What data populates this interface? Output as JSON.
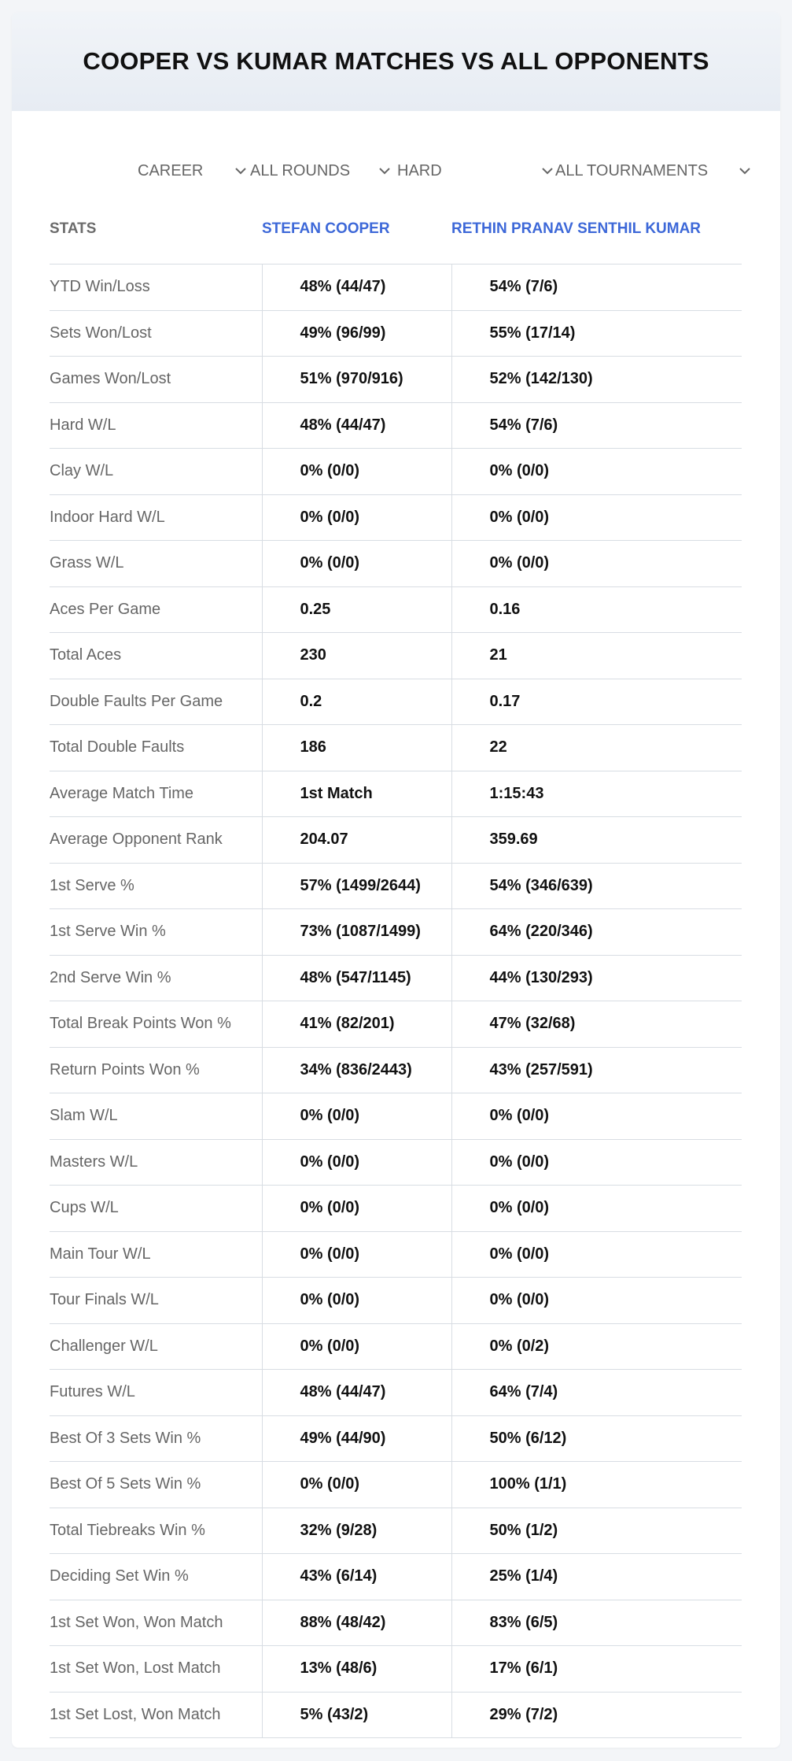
{
  "title": "COOPER VS KUMAR MATCHES VS ALL OPPONENTS",
  "filters": {
    "period": "CAREER",
    "rounds": "ALL ROUNDS",
    "surface": "HARD",
    "tournaments": "ALL TOURNAMENTS"
  },
  "table": {
    "headers": [
      "STATS",
      "STEFAN COOPER",
      "RETHIN PRANAV SENTHIL KUMAR"
    ],
    "rows": [
      [
        "YTD Win/Loss",
        "48% (44/47)",
        "54% (7/6)"
      ],
      [
        "Sets Won/Lost",
        "49% (96/99)",
        "55% (17/14)"
      ],
      [
        "Games Won/Lost",
        "51% (970/916)",
        "52% (142/130)"
      ],
      [
        "Hard W/L",
        "48% (44/47)",
        "54% (7/6)"
      ],
      [
        "Clay W/L",
        "0% (0/0)",
        "0% (0/0)"
      ],
      [
        "Indoor Hard W/L",
        "0% (0/0)",
        "0% (0/0)"
      ],
      [
        "Grass W/L",
        "0% (0/0)",
        "0% (0/0)"
      ],
      [
        "Aces Per Game",
        "0.25",
        "0.16"
      ],
      [
        "Total Aces",
        "230",
        "21"
      ],
      [
        "Double Faults Per Game",
        "0.2",
        "0.17"
      ],
      [
        "Total Double Faults",
        "186",
        "22"
      ],
      [
        "Average Match Time",
        "1st Match",
        "1:15:43"
      ],
      [
        "Average Opponent Rank",
        "204.07",
        "359.69"
      ],
      [
        "1st Serve %",
        "57% (1499/2644)",
        "54% (346/639)"
      ],
      [
        "1st Serve Win %",
        "73% (1087/1499)",
        "64% (220/346)"
      ],
      [
        "2nd Serve Win %",
        "48% (547/1145)",
        "44% (130/293)"
      ],
      [
        "Total Break Points Won %",
        "41% (82/201)",
        "47% (32/68)"
      ],
      [
        "Return Points Won %",
        "34% (836/2443)",
        "43% (257/591)"
      ],
      [
        "Slam W/L",
        "0% (0/0)",
        "0% (0/0)"
      ],
      [
        "Masters W/L",
        "0% (0/0)",
        "0% (0/0)"
      ],
      [
        "Cups W/L",
        "0% (0/0)",
        "0% (0/0)"
      ],
      [
        "Main Tour W/L",
        "0% (0/0)",
        "0% (0/0)"
      ],
      [
        "Tour Finals W/L",
        "0% (0/0)",
        "0% (0/0)"
      ],
      [
        "Challenger W/L",
        "0% (0/0)",
        "0% (0/2)"
      ],
      [
        "Futures W/L",
        "48% (44/47)",
        "64% (7/4)"
      ],
      [
        "Best Of 3 Sets Win %",
        "49% (44/90)",
        "50% (6/12)"
      ],
      [
        "Best Of 5 Sets Win %",
        "0% (0/0)",
        "100% (1/1)"
      ],
      [
        "Total Tiebreaks Win %",
        "32% (9/28)",
        "50% (1/2)"
      ],
      [
        "Deciding Set Win %",
        "43% (6/14)",
        "25% (1/4)"
      ],
      [
        "1st Set Won, Won Match",
        "88% (48/42)",
        "83% (6/5)"
      ],
      [
        "1st Set Won, Lost Match",
        "13% (48/6)",
        "17% (6/1)"
      ],
      [
        "1st Set Lost, Won Match",
        "5% (43/2)",
        "29% (7/2)"
      ]
    ]
  },
  "colors": {
    "player_header": "#3d68d8",
    "header_bg": "#e9eef4"
  },
  "icons": {
    "dropdown": "chevron-down-icon"
  }
}
